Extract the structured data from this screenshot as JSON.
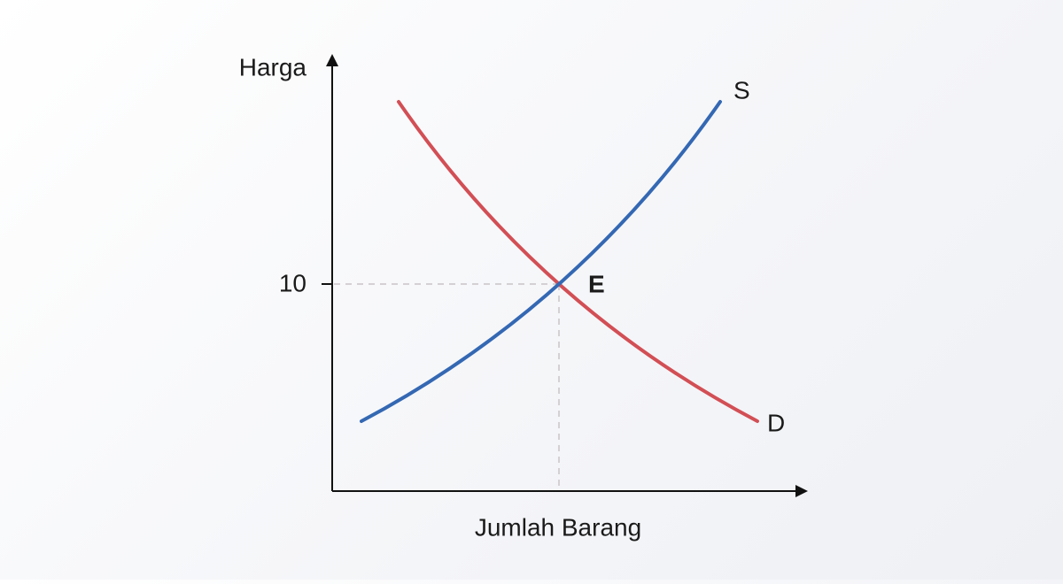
{
  "diagram": {
    "y_axis_label": "Harga",
    "x_axis_label": "Jumlah Barang",
    "price_tick": "10",
    "supply_label": "S",
    "demand_label": "D",
    "equilibrium_label": "E"
  }
}
